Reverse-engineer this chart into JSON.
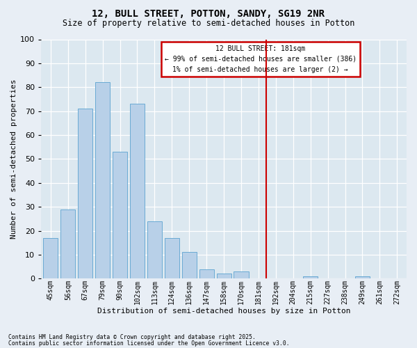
{
  "title": "12, BULL STREET, POTTON, SANDY, SG19 2NR",
  "subtitle": "Size of property relative to semi-detached houses in Potton",
  "xlabel": "Distribution of semi-detached houses by size in Potton",
  "ylabel": "Number of semi-detached properties",
  "categories": [
    "45sqm",
    "56sqm",
    "67sqm",
    "79sqm",
    "90sqm",
    "102sqm",
    "113sqm",
    "124sqm",
    "136sqm",
    "147sqm",
    "158sqm",
    "170sqm",
    "181sqm",
    "192sqm",
    "204sqm",
    "215sqm",
    "227sqm",
    "238sqm",
    "249sqm",
    "261sqm",
    "272sqm"
  ],
  "values": [
    17,
    29,
    71,
    82,
    53,
    73,
    24,
    17,
    11,
    4,
    2,
    3,
    0,
    0,
    0,
    1,
    0,
    0,
    1,
    0,
    0
  ],
  "bar_color": "#b8d0e8",
  "bar_edge_color": "#6aaad4",
  "highlight_index": 12,
  "highlight_line_color": "#cc0000",
  "ylim": [
    0,
    100
  ],
  "yticks": [
    0,
    10,
    20,
    30,
    40,
    50,
    60,
    70,
    80,
    90,
    100
  ],
  "annotation_title": "12 BULL STREET: 181sqm",
  "annotation_line1": "← 99% of semi-detached houses are smaller (386)",
  "annotation_line2": "1% of semi-detached houses are larger (2) →",
  "annotation_box_color": "#cc0000",
  "footnote1": "Contains HM Land Registry data © Crown copyright and database right 2025.",
  "footnote2": "Contains public sector information licensed under the Open Government Licence v3.0.",
  "fig_bg": "#e8eef5",
  "axes_bg": "#dce8f0",
  "bar_width": 0.85
}
